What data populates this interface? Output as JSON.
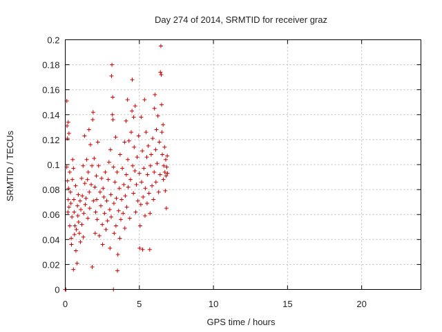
{
  "chart_data": {
    "type": "scatter",
    "title": "Day 274 of 2014, SRMTID for receiver graz",
    "xlabel": "GPS time / hours",
    "ylabel": "SRMTID / TECUs",
    "xlim": [
      0,
      24
    ],
    "ylim": [
      0,
      0.2
    ],
    "x_ticks": [
      0,
      5,
      10,
      15,
      20
    ],
    "x_tick_labels": [
      "0",
      "5",
      "10",
      "15",
      "20"
    ],
    "y_ticks": [
      0,
      0.02,
      0.04,
      0.06,
      0.08,
      0.1,
      0.12,
      0.14,
      0.16,
      0.18,
      0.2
    ],
    "y_tick_labels": [
      "0",
      "0.02",
      "0.04",
      "0.06",
      "0.08",
      "0.1",
      "0.12",
      "0.14",
      "0.16",
      "0.18",
      "0.2"
    ],
    "grid": true,
    "marker": "+",
    "color": "#cc0000",
    "series": [
      {
        "name": "SRMTID",
        "points": [
          [
            0.0,
            0.0
          ],
          [
            0.05,
            0.0
          ],
          [
            0.1,
            0.151
          ],
          [
            0.12,
            0.131
          ],
          [
            0.15,
            0.121
          ],
          [
            0.2,
            0.134
          ],
          [
            0.25,
            0.125
          ],
          [
            0.1,
            0.098
          ],
          [
            0.15,
            0.087
          ],
          [
            0.2,
            0.072
          ],
          [
            0.25,
            0.066
          ],
          [
            0.3,
            0.051
          ],
          [
            0.18,
            0.062
          ],
          [
            0.22,
            0.081
          ],
          [
            0.3,
            0.094
          ],
          [
            0.35,
            0.078
          ],
          [
            0.38,
            0.069
          ],
          [
            0.4,
            0.041
          ],
          [
            0.42,
            0.036
          ],
          [
            0.45,
            0.058
          ],
          [
            0.48,
            0.088
          ],
          [
            0.5,
            0.104
          ],
          [
            0.55,
            0.016
          ],
          [
            0.55,
            0.097
          ],
          [
            0.58,
            0.072
          ],
          [
            0.6,
            0.062
          ],
          [
            0.62,
            0.044
          ],
          [
            0.65,
            0.051
          ],
          [
            0.7,
            0.083
          ],
          [
            0.72,
            0.031
          ],
          [
            0.75,
            0.048
          ],
          [
            0.8,
            0.021
          ],
          [
            0.82,
            0.067
          ],
          [
            0.85,
            0.059
          ],
          [
            0.88,
            0.076
          ],
          [
            0.9,
            0.054
          ],
          [
            0.95,
            0.045
          ],
          [
            1.0,
            0.071
          ],
          [
            1.02,
            0.038
          ],
          [
            1.05,
            0.064
          ],
          [
            1.1,
            0.089
          ],
          [
            1.12,
            0.052
          ],
          [
            1.15,
            0.075
          ],
          [
            1.2,
            0.099
          ],
          [
            1.22,
            0.042
          ],
          [
            1.25,
            0.061
          ],
          [
            1.3,
            0.123
          ],
          [
            1.32,
            0.085
          ],
          [
            1.35,
            0.068
          ],
          [
            1.4,
            0.073
          ],
          [
            1.45,
            0.104
          ],
          [
            1.5,
            0.088
          ],
          [
            1.52,
            0.057
          ],
          [
            1.55,
            0.094
          ],
          [
            1.6,
            0.128
          ],
          [
            1.62,
            0.078
          ],
          [
            1.65,
            0.065
          ],
          [
            1.7,
            0.116
          ],
          [
            1.75,
            0.084
          ],
          [
            1.8,
            0.099
          ],
          [
            1.82,
            0.018
          ],
          [
            1.85,
            0.136
          ],
          [
            1.88,
            0.142
          ],
          [
            1.9,
            0.071
          ],
          [
            1.95,
            0.105
          ],
          [
            2.0,
            0.082
          ],
          [
            2.02,
            0.045
          ],
          [
            2.05,
            0.062
          ],
          [
            2.1,
            0.091
          ],
          [
            2.12,
            0.072
          ],
          [
            2.15,
            0.056
          ],
          [
            2.2,
            0.118
          ],
          [
            2.25,
            0.099
          ],
          [
            2.3,
            0.043
          ],
          [
            2.35,
            0.078
          ],
          [
            2.4,
            0.067
          ],
          [
            2.45,
            0.089
          ],
          [
            2.5,
            0.052
          ],
          [
            2.52,
            0.036
          ],
          [
            2.55,
            0.081
          ],
          [
            2.6,
            0.074
          ],
          [
            2.65,
            0.061
          ],
          [
            2.7,
            0.094
          ],
          [
            2.75,
            0.048
          ],
          [
            2.8,
            0.071
          ],
          [
            2.85,
            0.055
          ],
          [
            2.9,
            0.088
          ],
          [
            2.95,
            0.102
          ],
          [
            3.0,
            0.064
          ],
          [
            3.02,
            0.033
          ],
          [
            3.05,
            0.112
          ],
          [
            3.08,
            0.076
          ],
          [
            3.1,
            0.058
          ],
          [
            3.12,
            0.171
          ],
          [
            3.15,
            0.18
          ],
          [
            3.18,
            0.14
          ],
          [
            3.2,
            0.154
          ],
          [
            3.22,
            0.136
          ],
          [
            3.25,
            0.0
          ],
          [
            3.25,
            0.098
          ],
          [
            3.28,
            0.069
          ],
          [
            3.3,
            0.045
          ],
          [
            3.35,
            0.086
          ],
          [
            3.4,
            0.122
          ],
          [
            3.42,
            0.051
          ],
          [
            3.45,
            0.073
          ],
          [
            3.5,
            0.094
          ],
          [
            3.52,
            0.015
          ],
          [
            3.55,
            0.028
          ],
          [
            3.6,
            0.063
          ],
          [
            3.65,
            0.081
          ],
          [
            3.68,
            0.041
          ],
          [
            3.7,
            0.108
          ],
          [
            3.75,
            0.056
          ],
          [
            3.8,
            0.072
          ],
          [
            3.85,
            0.097
          ],
          [
            3.9,
            0.061
          ],
          [
            3.95,
            0.084
          ],
          [
            4.0,
            0.118
          ],
          [
            4.02,
            0.049
          ],
          [
            4.05,
            0.075
          ],
          [
            4.1,
            0.135
          ],
          [
            4.12,
            0.092
          ],
          [
            4.15,
            0.066
          ],
          [
            4.2,
            0.152
          ],
          [
            4.22,
            0.104
          ],
          [
            4.25,
            0.082
          ],
          [
            4.3,
            0.119
          ],
          [
            4.35,
            0.057
          ],
          [
            4.4,
            0.088
          ],
          [
            4.45,
            0.126
          ],
          [
            4.5,
            0.143
          ],
          [
            4.52,
            0.168
          ],
          [
            4.55,
            0.099
          ],
          [
            4.6,
            0.077
          ],
          [
            4.62,
            0.138
          ],
          [
            4.65,
            0.114
          ],
          [
            4.7,
            0.095
          ],
          [
            4.72,
            0.147
          ],
          [
            4.75,
            0.062
          ],
          [
            4.8,
            0.084
          ],
          [
            4.85,
            0.106
          ],
          [
            4.9,
            0.071
          ],
          [
            4.95,
            0.123
          ],
          [
            5.0,
            0.093
          ],
          [
            5.02,
            0.033
          ],
          [
            5.05,
            0.051
          ],
          [
            5.1,
            0.068
          ],
          [
            5.12,
            0.138
          ],
          [
            5.15,
            0.086
          ],
          [
            5.2,
            0.111
          ],
          [
            5.22,
            0.032
          ],
          [
            5.25,
            0.074
          ],
          [
            5.3,
            0.097
          ],
          [
            5.35,
            0.152
          ],
          [
            5.38,
            0.059
          ],
          [
            5.4,
            0.081
          ],
          [
            5.45,
            0.126
          ],
          [
            5.5,
            0.106
          ],
          [
            5.52,
            0.069
          ],
          [
            5.55,
            0.092
          ],
          [
            5.6,
            0.115
          ],
          [
            5.65,
            0.077
          ],
          [
            5.7,
            0.032
          ],
          [
            5.72,
            0.061
          ],
          [
            5.75,
            0.099
          ],
          [
            5.8,
            0.108
          ],
          [
            5.85,
            0.083
          ],
          [
            5.9,
            0.121
          ],
          [
            5.95,
            0.072
          ],
          [
            6.0,
            0.094
          ],
          [
            6.02,
            0.145
          ],
          [
            6.05,
            0.156
          ],
          [
            6.1,
            0.112
          ],
          [
            6.12,
            0.086
          ],
          [
            6.15,
            0.128
          ],
          [
            6.2,
            0.101
          ],
          [
            6.25,
            0.139
          ],
          [
            6.3,
            0.078
          ],
          [
            6.35,
            0.118
          ],
          [
            6.4,
            0.092
          ],
          [
            6.42,
            0.174
          ],
          [
            6.45,
            0.195
          ],
          [
            6.48,
            0.172
          ],
          [
            6.5,
            0.148
          ],
          [
            6.52,
            0.126
          ],
          [
            6.55,
            0.108
          ],
          [
            6.6,
            0.132
          ],
          [
            6.62,
            0.088
          ],
          [
            6.65,
            0.099
          ],
          [
            6.7,
            0.114
          ],
          [
            6.72,
            0.094
          ],
          [
            6.75,
            0.079
          ],
          [
            6.78,
            0.104
          ],
          [
            6.8,
            0.091
          ],
          [
            6.82,
            0.065
          ],
          [
            6.85,
            0.098
          ],
          [
            6.88,
            0.107
          ],
          [
            6.9,
            0.093
          ]
        ]
      }
    ]
  }
}
